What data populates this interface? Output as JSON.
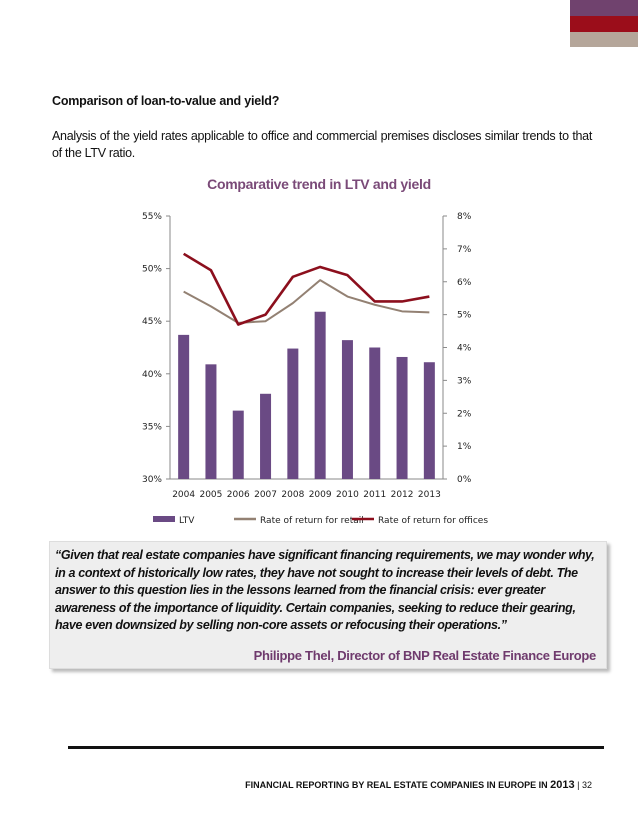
{
  "colors": {
    "deco_top": "#70426e",
    "deco_mid": "#9b0d1a",
    "deco_bottom": "#b5a69a",
    "title_purple": "#7a4a78",
    "author_purple": "#6f3a6d",
    "ltv_bar": "#6a4a84",
    "retail_line": "#938173",
    "offices_line": "#8c0f1d"
  },
  "section": {
    "heading": "Comparison of loan-to-value and yield?",
    "paragraph": "Analysis of the yield rates applicable to office and commercial premises discloses similar trends to that of the LTV ratio."
  },
  "chart_data": {
    "type": "bar+line",
    "title": "Comparative trend in LTV and yield",
    "categories": [
      "2004",
      "2005",
      "2006",
      "2007",
      "2008",
      "2009",
      "2010",
      "2011",
      "2012",
      "2013"
    ],
    "left_axis": {
      "min": 30,
      "max": 55,
      "ticks": [
        "30%",
        "35%",
        "40%",
        "45%",
        "50%",
        "55%"
      ]
    },
    "right_axis": {
      "min": 0,
      "max": 8,
      "ticks": [
        "0%",
        "1%",
        "2%",
        "3%",
        "4%",
        "5%",
        "6%",
        "7%",
        "8%"
      ]
    },
    "series": [
      {
        "name": "LTV",
        "kind": "bar",
        "axis": "left",
        "values": [
          43.7,
          40.9,
          36.5,
          38.1,
          42.4,
          45.9,
          43.2,
          42.5,
          41.6,
          41.1
        ]
      },
      {
        "name": "Rate of return for retail",
        "kind": "line",
        "axis": "right",
        "values": [
          5.7,
          5.25,
          4.75,
          4.8,
          5.35,
          6.05,
          5.55,
          5.3,
          5.1,
          5.07
        ]
      },
      {
        "name": "Rate of return for offices",
        "kind": "line",
        "axis": "right",
        "values": [
          6.85,
          6.35,
          4.7,
          5.0,
          6.15,
          6.45,
          6.2,
          5.4,
          5.4,
          5.55
        ]
      }
    ],
    "legend": [
      "LTV",
      "Rate of return for retail",
      "Rate of return for offices"
    ],
    "legend_position": "bottom"
  },
  "quote": {
    "text": "“Given that real estate companies have significant financing requirements, we may wonder why, in a context of historically low rates, they have not sought to increase their levels of debt. The answer to this question lies in the lessons learned from the financial crisis: ever greater awareness of the importance of liquidity. Certain companies, seeking to reduce their gearing, have even downsized by selling non-core assets or refocusing their operations.”",
    "author": "Philippe Thel, Director of BNP Real Estate Finance Europe"
  },
  "footer": {
    "text": "FINANCIAL REPORTING BY REAL ESTATE COMPANIES IN EUROPE IN ",
    "year": "2013",
    "separator": "|",
    "page": "32"
  }
}
